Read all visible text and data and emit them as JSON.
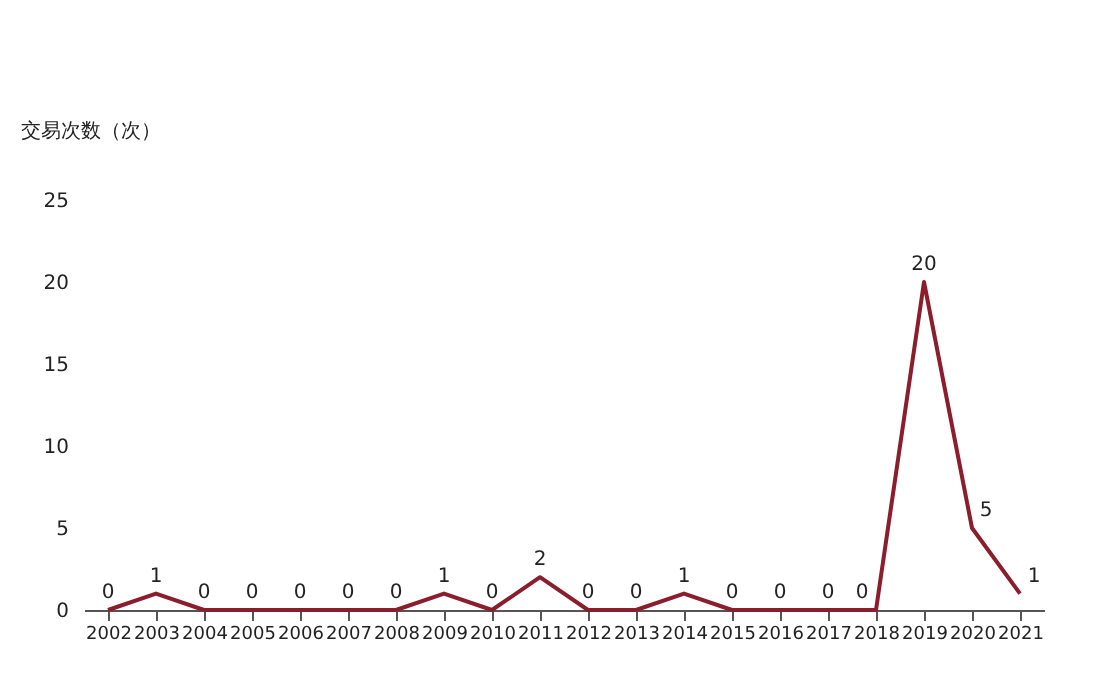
{
  "chart_data": {
    "type": "line",
    "ylabel": "交易次数（次）",
    "categories": [
      "2002",
      "2003",
      "2004",
      "2005",
      "2006",
      "2007",
      "2008",
      "2009",
      "2010",
      "2011",
      "2012",
      "2013",
      "2014",
      "2015",
      "2016",
      "2017",
      "2018",
      "2019",
      "2020",
      "2021"
    ],
    "series": [
      {
        "color": "#8b1e2c",
        "values": [
          0,
          1,
          0,
          0,
          0,
          0,
          0,
          1,
          0,
          2,
          0,
          0,
          1,
          0,
          0,
          0,
          0,
          20,
          5,
          1
        ]
      }
    ],
    "ylim": [
      0,
      25
    ],
    "yticks": [
      0,
      5,
      10,
      15,
      20,
      25
    ],
    "data_labels": true,
    "grid": false,
    "legend": false,
    "marker": "none",
    "line_style": "solid"
  }
}
